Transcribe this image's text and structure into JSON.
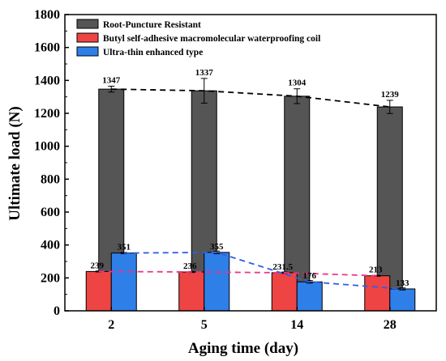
{
  "chart_data": {
    "type": "bar",
    "xlabel": "Aging time (day)",
    "ylabel": "Ultimate load (N)",
    "ylim": [
      0,
      1800
    ],
    "yticks": [
      0,
      200,
      400,
      600,
      800,
      1000,
      1200,
      1400,
      1600,
      1800
    ],
    "categories": [
      "2",
      "5",
      "14",
      "28"
    ],
    "legend_position": "top-left",
    "series": [
      {
        "name": "Root-Puncture Resistant",
        "color": "#555555",
        "line_color": "#000000",
        "values": [
          1347,
          1337,
          1304,
          1239
        ],
        "labels": [
          "1347",
          "1337",
          "1304",
          "1239"
        ],
        "errors": [
          18,
          75,
          45,
          40
        ]
      },
      {
        "name": "Butyl self-adhesive macromolecular waterproofing coil",
        "color": "#ee4444",
        "line_color": "#ee3388",
        "values": [
          239,
          236,
          231.5,
          213
        ],
        "labels": [
          "239",
          "236",
          "231.5",
          "213"
        ],
        "errors": [
          3,
          3,
          4,
          3
        ]
      },
      {
        "name": "Ultra-thin enhanced type",
        "color": "#2f7fe8",
        "line_color": "#2f5fe8",
        "values": [
          351,
          355,
          176,
          133
        ],
        "labels": [
          "351",
          "355",
          "176",
          "133"
        ],
        "errors": [
          4,
          8,
          8,
          6
        ]
      }
    ],
    "trend_lines": "dashed lines connecting bar tops per series"
  }
}
